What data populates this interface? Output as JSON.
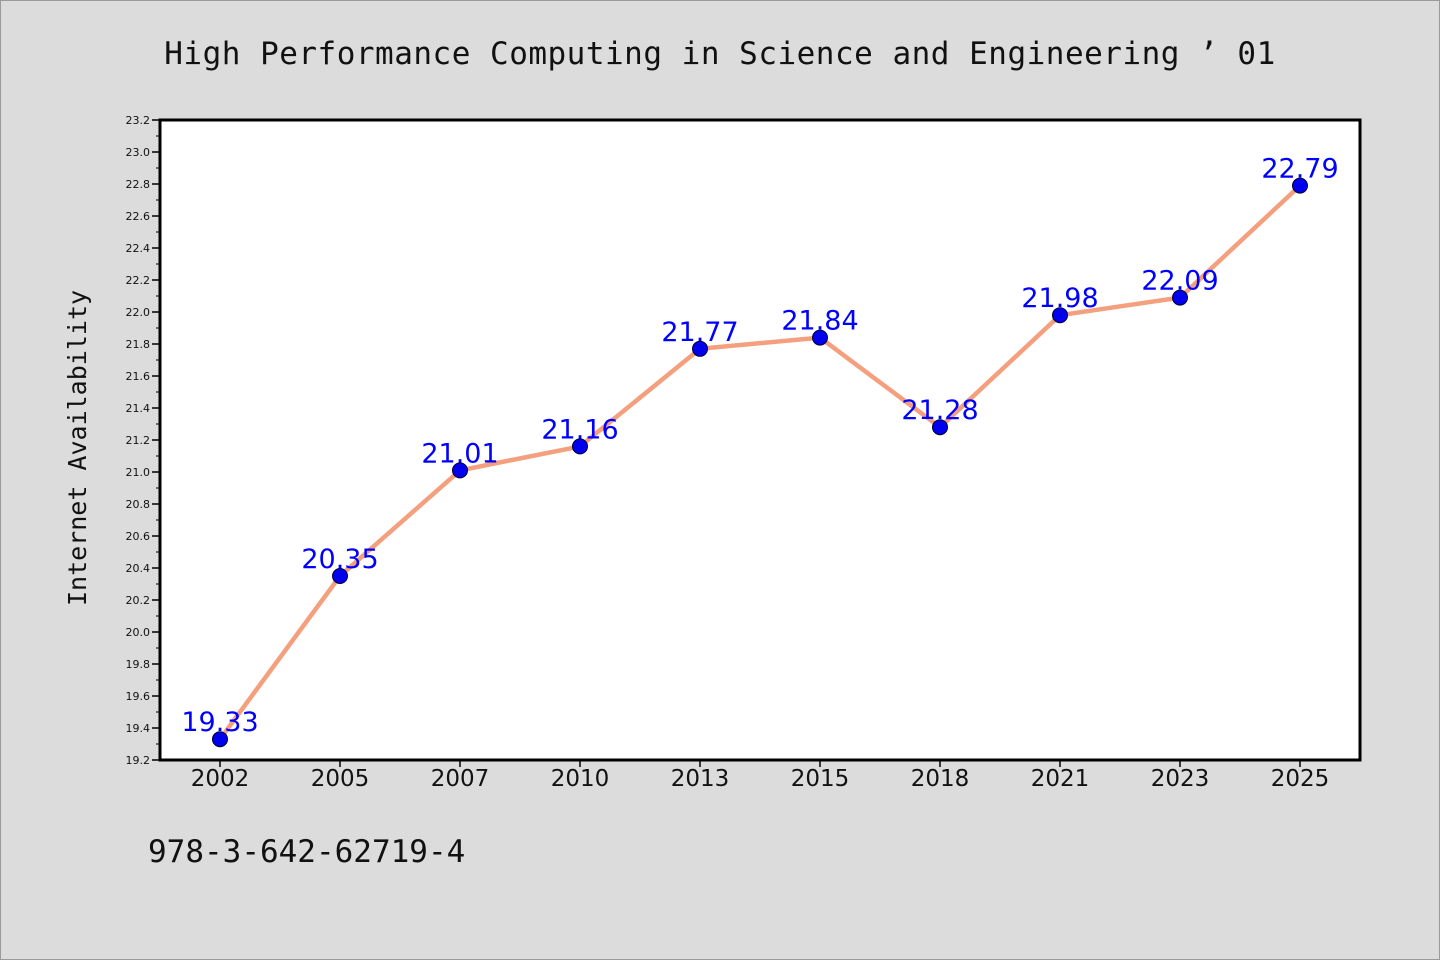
{
  "chart_data": {
    "type": "line",
    "title": "High Performance Computing in Science and Engineering ’ 01",
    "xlabel": "",
    "ylabel": "Internet Availability",
    "categories": [
      "2002",
      "2005",
      "2007",
      "2010",
      "2013",
      "2015",
      "2018",
      "2021",
      "2023",
      "2025"
    ],
    "series": [
      {
        "values": [
          19.33,
          20.35,
          21.01,
          21.16,
          21.77,
          21.84,
          21.28,
          21.98,
          22.09,
          22.79
        ],
        "data_labels": [
          "19.33",
          "20.35",
          "21.01",
          "21.16",
          "21.77",
          "21.84",
          "21.28",
          "21.98",
          "22.09",
          "22.79"
        ]
      }
    ],
    "ylim": [
      19.2,
      23.2
    ],
    "yticks": [
      "19.2",
      "19.4",
      "19.6",
      "19.8",
      "20.0",
      "20.2",
      "20.4",
      "20.6",
      "20.8",
      "21.0",
      "21.2",
      "21.4",
      "21.6",
      "21.8",
      "22.0",
      "22.2",
      "22.4",
      "22.6",
      "22.8",
      "23.0",
      "23.2"
    ],
    "grid": false,
    "legend": "none",
    "line_color": "#f4a07e",
    "marker_color": "#0000ee",
    "label_color": "#0000ff",
    "plot_background": "#ffffff",
    "page_background": "#dcdcdc"
  },
  "footer": {
    "isbn": "978-3-642-62719-4"
  }
}
